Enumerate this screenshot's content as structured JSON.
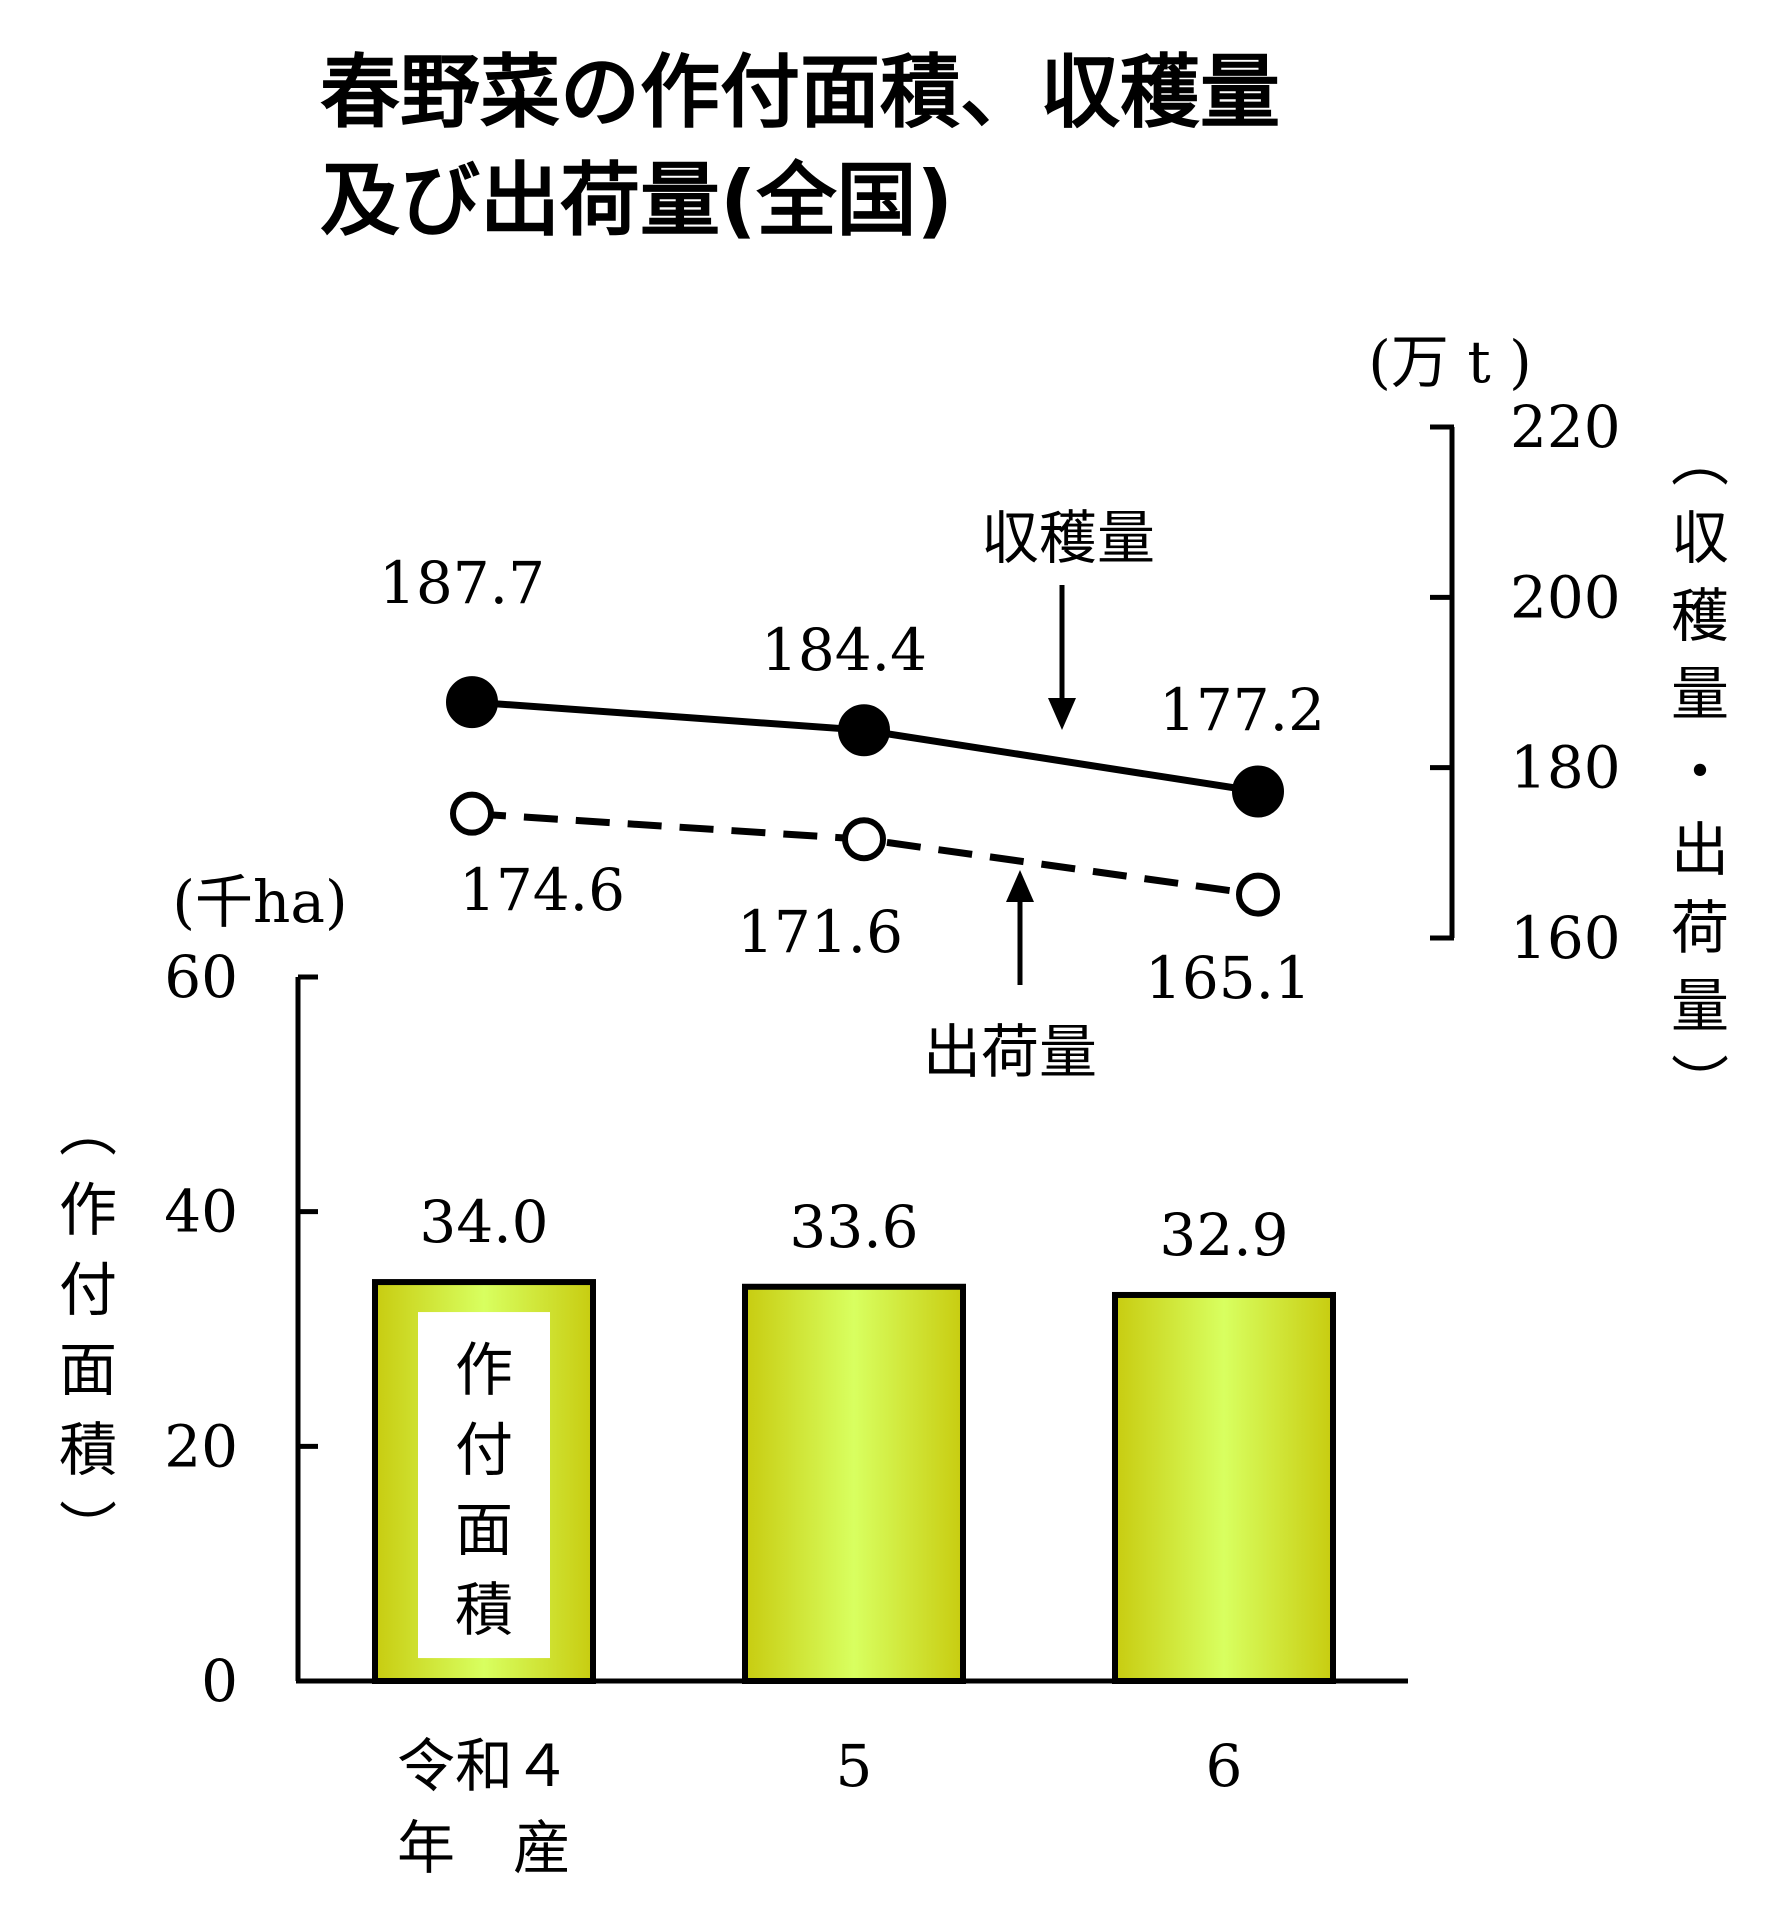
{
  "title": {
    "line1": "春野菜の作付面積、収穫量",
    "line2": "及び出荷量(全国)"
  },
  "chart_data": {
    "type": "bar+line",
    "categories": [
      "令和４",
      "5",
      "6"
    ],
    "category_suffix": "年　産",
    "bars": {
      "name": "作付面積",
      "values": [
        34.0,
        33.6,
        32.9
      ],
      "value_labels": [
        "34.0",
        "33.6",
        "32.9"
      ],
      "color_edge": "#c8cc10",
      "color_center": "#d8ff60"
    },
    "lines": [
      {
        "name": "収穫量",
        "values": [
          187.7,
          184.4,
          177.2
        ],
        "value_labels": [
          "187.7",
          "184.4",
          "177.2"
        ],
        "marker": "filled-circle",
        "style": "solid"
      },
      {
        "name": "出荷量",
        "values": [
          174.6,
          171.6,
          165.1
        ],
        "value_labels": [
          "174.6",
          "171.6",
          "165.1"
        ],
        "marker": "open-circle",
        "style": "dashed"
      }
    ],
    "left_axis": {
      "unit": "(千ha)",
      "label": "(作付面積)",
      "ylim": [
        0,
        60
      ],
      "ticks": [
        0,
        20,
        40,
        60
      ]
    },
    "right_axis": {
      "unit": "(万 t )",
      "label": "(収穫量・出荷量)",
      "ylim": [
        160,
        220
      ],
      "ticks": [
        160,
        180,
        200,
        220
      ]
    },
    "grid": false,
    "legend": "none"
  }
}
